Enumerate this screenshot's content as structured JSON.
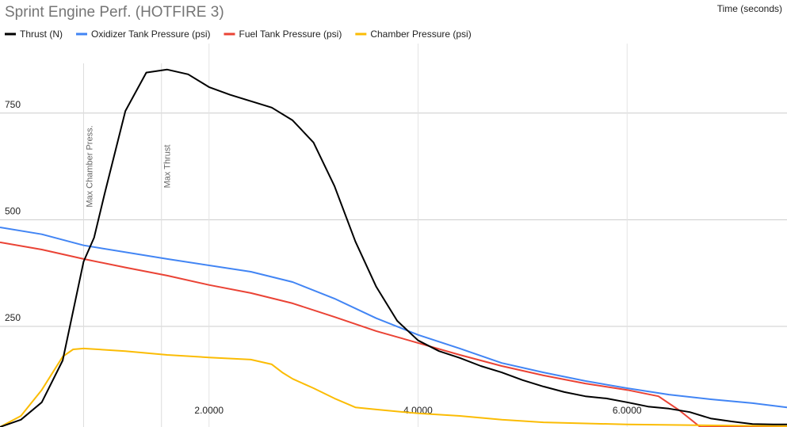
{
  "chart_data": {
    "type": "line",
    "title": "Sprint Engine Perf. (HOTFIRE 3)",
    "x_label": "Time (seconds)",
    "xlim": [
      0,
      7.53
    ],
    "ylim": [
      14,
      913
    ],
    "xticks": [
      {
        "value": 2,
        "label": "2.0000"
      },
      {
        "value": 4,
        "label": "4.0000"
      },
      {
        "value": 6,
        "label": "6.0000"
      }
    ],
    "yticks": [
      250,
      500,
      750
    ],
    "grid": true,
    "annotations": [
      {
        "x": 0.8,
        "label": "Max Chamber Press."
      },
      {
        "x": 1.545,
        "label": "Max Thrust"
      }
    ],
    "series": [
      {
        "name": "Thrust (N)",
        "color": "#000000",
        "x": [
          0,
          0.2,
          0.4,
          0.6,
          0.8,
          0.9,
          1.0,
          1.2,
          1.4,
          1.6,
          1.8,
          2.0,
          2.2,
          2.4,
          2.6,
          2.8,
          3.0,
          3.2,
          3.4,
          3.6,
          3.8,
          4.0,
          4.2,
          4.4,
          4.6,
          4.8,
          5.0,
          5.2,
          5.4,
          5.6,
          5.8,
          6.0,
          6.2,
          6.4,
          6.6,
          6.8,
          7.0,
          7.2,
          7.4,
          7.53
        ],
        "values": [
          14,
          31,
          72,
          170,
          402,
          458,
          560,
          755,
          845,
          852,
          841,
          811,
          793,
          778,
          763,
          733,
          681,
          579,
          449,
          343,
          263,
          217,
          192,
          176,
          157,
          142,
          124,
          109,
          96,
          86,
          81,
          72,
          62,
          57,
          49,
          34,
          27,
          21,
          20,
          20
        ]
      },
      {
        "name": "Oxidizer Tank Pressure (psi)",
        "color": "#4285f4",
        "x": [
          0,
          0.4,
          0.8,
          1.6,
          2.4,
          2.8,
          3.2,
          3.6,
          4.0,
          4.4,
          4.8,
          5.2,
          5.6,
          6.0,
          6.4,
          6.8,
          7.2,
          7.53
        ],
        "values": [
          482,
          466,
          440,
          408,
          378,
          354,
          315,
          269,
          230,
          198,
          164,
          142,
          122,
          105,
          90,
          79,
          70,
          60
        ]
      },
      {
        "name": "Fuel Tank Pressure (psi)",
        "color": "#ea4335",
        "x": [
          0,
          0.4,
          0.8,
          1.2,
          1.6,
          2.0,
          2.4,
          2.8,
          3.2,
          3.6,
          4.0,
          4.4,
          4.8,
          5.2,
          5.6,
          6.0,
          6.3,
          6.5,
          6.7,
          7.53
        ],
        "values": [
          447,
          430,
          408,
          388,
          369,
          347,
          328,
          304,
          272,
          239,
          211,
          183,
          157,
          135,
          116,
          101,
          86,
          53,
          14,
          14
        ]
      },
      {
        "name": "Chamber Pressure (psi)",
        "color": "#fbbc04",
        "x": [
          0,
          0.2,
          0.4,
          0.6,
          0.7,
          0.8,
          1.2,
          1.6,
          2.0,
          2.4,
          2.6,
          2.7,
          2.8,
          3.0,
          3.2,
          3.4,
          3.6,
          4.0,
          4.4,
          4.8,
          5.2,
          6.0,
          7.53
        ],
        "values": [
          14,
          40,
          101,
          179,
          196,
          198,
          192,
          183,
          177,
          172,
          161,
          142,
          127,
          105,
          81,
          60,
          55,
          46,
          40,
          31,
          25,
          20,
          16
        ]
      }
    ]
  }
}
